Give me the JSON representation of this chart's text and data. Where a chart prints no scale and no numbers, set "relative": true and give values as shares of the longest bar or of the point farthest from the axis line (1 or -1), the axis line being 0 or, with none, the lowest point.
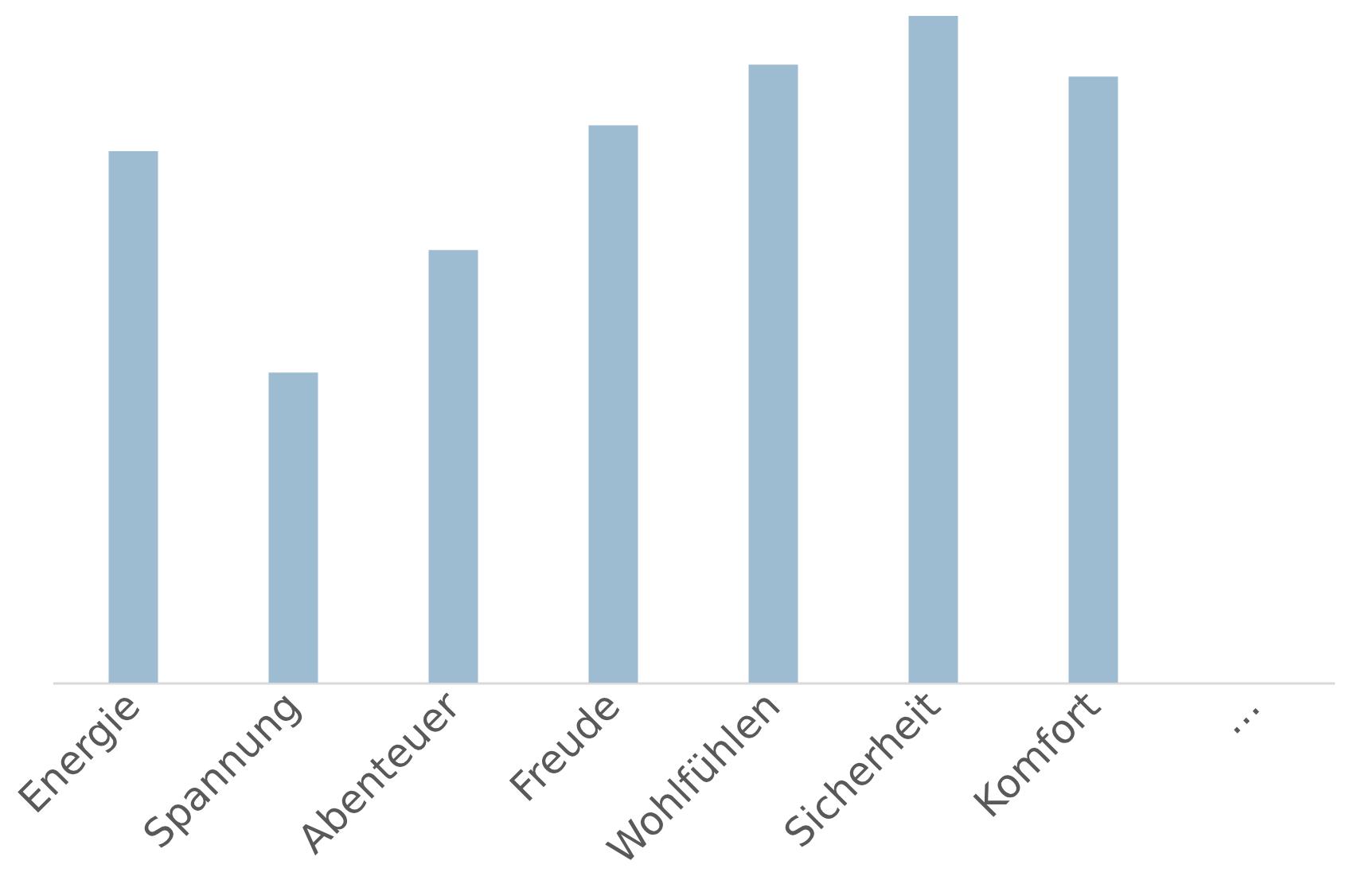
{
  "chart_data": {
    "type": "bar",
    "relative": true,
    "categories": [
      "Energie",
      "Spannung",
      "Abenteuer",
      "Freude",
      "Wohlfühlen",
      "Sicherheit",
      "Komfort",
      "…"
    ],
    "values": [
      0.797,
      0.465,
      0.649,
      0.836,
      0.927,
      1,
      0.909,
      null
    ],
    "color": "#9dbcd1"
  }
}
